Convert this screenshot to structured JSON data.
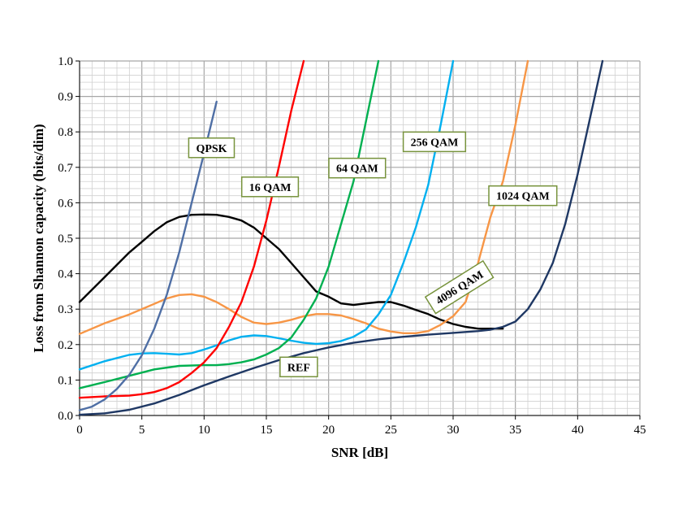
{
  "chart_data": {
    "type": "line",
    "xlabel": "SNR [dB]",
    "ylabel": "Loss from Shannon capacity (bits/dim)",
    "xlim": [
      0,
      45
    ],
    "ylim": [
      0,
      1
    ],
    "x_ticks": [
      0,
      5,
      10,
      15,
      20,
      25,
      30,
      35,
      40,
      45
    ],
    "y_ticks": [
      0.0,
      0.1,
      0.2,
      0.3,
      0.4,
      0.5,
      0.6,
      0.7,
      0.8,
      0.9,
      1.0
    ],
    "x_tick_labels": [
      "0",
      "5",
      "10",
      "15",
      "20",
      "25",
      "30",
      "35",
      "40",
      "45"
    ],
    "y_tick_labels": [
      "0.0",
      "0.1",
      "0.2",
      "0.3",
      "0.4",
      "0.5",
      "0.6",
      "0.7",
      "0.8",
      "0.9",
      "1.0"
    ],
    "grid": true,
    "series": [
      {
        "color": "#000000",
        "x": [
          0,
          2,
          4,
          5,
          6,
          7,
          8,
          9,
          10,
          11,
          12,
          13,
          14,
          15,
          16,
          17,
          18,
          19,
          20,
          21,
          22,
          23,
          24,
          25,
          26,
          27,
          28,
          29,
          30,
          31,
          32,
          33,
          34
        ],
        "y": [
          0.32,
          0.39,
          0.46,
          0.49,
          0.52,
          0.545,
          0.56,
          0.566,
          0.567,
          0.566,
          0.56,
          0.55,
          0.53,
          0.5,
          0.47,
          0.43,
          0.39,
          0.35,
          0.335,
          0.316,
          0.312,
          0.316,
          0.32,
          0.32,
          0.31,
          0.298,
          0.286,
          0.27,
          0.258,
          0.25,
          0.245,
          0.245,
          0.245
        ]
      },
      {
        "color": "#F79646",
        "x": [
          0,
          2,
          4,
          6,
          7,
          8,
          9,
          10,
          11,
          12,
          13,
          14,
          15,
          16,
          17,
          18,
          19,
          20,
          21,
          22,
          23,
          24,
          25,
          26,
          27,
          28,
          29,
          30,
          31,
          32,
          33,
          34,
          35,
          36
        ],
        "y": [
          0.23,
          0.26,
          0.285,
          0.315,
          0.33,
          0.34,
          0.342,
          0.335,
          0.32,
          0.3,
          0.278,
          0.262,
          0.258,
          0.262,
          0.27,
          0.28,
          0.286,
          0.286,
          0.282,
          0.272,
          0.26,
          0.245,
          0.237,
          0.232,
          0.232,
          0.238,
          0.256,
          0.28,
          0.32,
          0.43,
          0.56,
          0.66,
          0.82,
          1.0
        ]
      },
      {
        "color": "#00B0F0",
        "x": [
          0,
          2,
          4,
          5,
          6,
          7,
          8,
          9,
          10,
          11,
          12,
          13,
          14,
          15,
          16,
          17,
          18,
          19,
          20,
          21,
          22,
          23,
          24,
          25,
          26,
          27,
          28,
          29,
          30
        ],
        "y": [
          0.13,
          0.153,
          0.171,
          0.175,
          0.176,
          0.174,
          0.172,
          0.176,
          0.186,
          0.198,
          0.212,
          0.222,
          0.226,
          0.224,
          0.218,
          0.211,
          0.205,
          0.202,
          0.204,
          0.21,
          0.222,
          0.243,
          0.285,
          0.34,
          0.43,
          0.53,
          0.65,
          0.82,
          1.0
        ]
      },
      {
        "color": "#00B050",
        "x": [
          0,
          2,
          4,
          6,
          8,
          10,
          11,
          12,
          13,
          14,
          15,
          16,
          17,
          18,
          19,
          20,
          21,
          22,
          23,
          24
        ],
        "y": [
          0.077,
          0.094,
          0.112,
          0.13,
          0.14,
          0.142,
          0.142,
          0.145,
          0.15,
          0.158,
          0.172,
          0.19,
          0.22,
          0.27,
          0.33,
          0.42,
          0.54,
          0.66,
          0.83,
          1.0
        ]
      },
      {
        "color": "#FF0000",
        "x": [
          0,
          2,
          4,
          5,
          6,
          7,
          8,
          9,
          10,
          11,
          12,
          13,
          14,
          15,
          16,
          17,
          18
        ],
        "y": [
          0.05,
          0.054,
          0.056,
          0.06,
          0.066,
          0.077,
          0.094,
          0.12,
          0.15,
          0.19,
          0.25,
          0.32,
          0.42,
          0.55,
          0.7,
          0.86,
          1.0
        ]
      },
      {
        "color": "#4F6FA5",
        "x": [
          0,
          1,
          2,
          3,
          4,
          5,
          6,
          7,
          8,
          9,
          10,
          11
        ],
        "y": [
          0.015,
          0.025,
          0.045,
          0.075,
          0.115,
          0.17,
          0.245,
          0.34,
          0.46,
          0.6,
          0.74,
          0.885
        ]
      },
      {
        "color": "#1F3864",
        "x": [
          0,
          2,
          4,
          6,
          8,
          10,
          12,
          14,
          16,
          18,
          20,
          22,
          24,
          26,
          28,
          30,
          32,
          33,
          34,
          35,
          36,
          37,
          38,
          39,
          40,
          41,
          42
        ],
        "y": [
          0.002,
          0.006,
          0.016,
          0.034,
          0.058,
          0.085,
          0.11,
          0.134,
          0.156,
          0.176,
          0.192,
          0.205,
          0.215,
          0.222,
          0.228,
          0.233,
          0.238,
          0.242,
          0.25,
          0.265,
          0.3,
          0.355,
          0.43,
          0.54,
          0.68,
          0.84,
          1.0
        ]
      }
    ],
    "annotations": [
      {
        "text": "QPSK",
        "x": 10.6,
        "y": 0.755,
        "angle": 0
      },
      {
        "text": "16 QAM",
        "x": 15.3,
        "y": 0.645,
        "angle": 0
      },
      {
        "text": "64 QAM",
        "x": 22.3,
        "y": 0.698,
        "angle": 0
      },
      {
        "text": "256 QAM",
        "x": 28.5,
        "y": 0.772,
        "angle": 0
      },
      {
        "text": "1024 QAM",
        "x": 35.6,
        "y": 0.62,
        "angle": 0
      },
      {
        "text": "4096 QAM",
        "x": 30.5,
        "y": 0.362,
        "angle": -32
      },
      {
        "text": "REF",
        "x": 17.6,
        "y": 0.137,
        "angle": 0
      }
    ],
    "annotation_border_color": "#77933C"
  }
}
